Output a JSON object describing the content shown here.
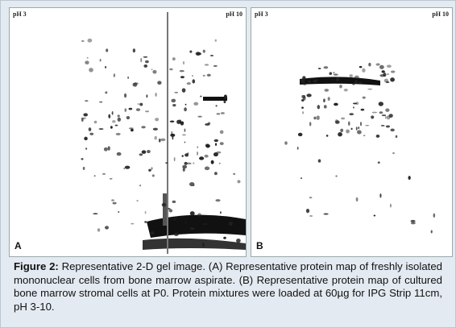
{
  "panels": [
    {
      "label": "A",
      "ph_left": "pH 3",
      "ph_right": "pH 10"
    },
    {
      "label": "B",
      "ph_left": "pH 3",
      "ph_right": "pH 10"
    }
  ],
  "caption": {
    "label": "Figure 2:",
    "text": "Representative 2-D gel image. (A) Representative protein map of freshly isolated mononuclear cells from bone marrow aspirate. (B) Representative protein map of cultured bone marrow stromal cells at P0. Protein mixtures were loaded at 60µg for IPG Strip 11cm, pH 3-10."
  }
}
